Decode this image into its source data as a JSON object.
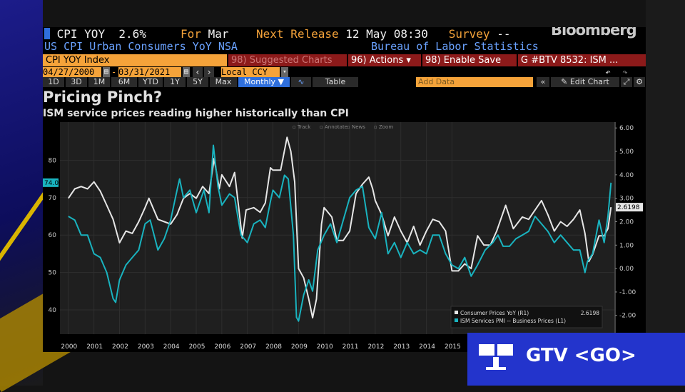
{
  "header": {
    "ticker": "CPI YOY",
    "value": "2.6%",
    "for_label": "For",
    "for_value": "Mar",
    "next_release_label": "Next Release",
    "next_release_value": "12 May 08:30",
    "survey_label": "Survey",
    "survey_value": "--",
    "description": "US CPI Urban Consumers YoY NSA",
    "source": "Bureau of Labor Statistics",
    "brand": "Bloomberg"
  },
  "toolbar": {
    "security": "CPI YOY Index",
    "suggested": "98) Suggested Charts",
    "actions": "96) Actions ▾",
    "enable_save": "98) Enable Save",
    "chart_id": "G #BTV 8532: ISM ...",
    "start_date": "04/27/2000",
    "end_date": "03/31/2021",
    "currency": "Local CCY",
    "periods": [
      "1D",
      "3D",
      "1M",
      "6M",
      "YTD",
      "1Y",
      "5Y",
      "Max"
    ],
    "frequency": "Monthly ▼",
    "table": "Table",
    "add_data": "Add Data",
    "edit_chart": "✎ Edit Chart",
    "colors": {
      "orange": "#f5a33a",
      "red": "#8c1a1a",
      "blue": "#2f6fdc"
    }
  },
  "chart_tools": [
    "Track",
    "Annotate",
    "News",
    "Zoom"
  ],
  "gtv": {
    "label": "GTV <GO>"
  },
  "chart_data": {
    "type": "line",
    "title": "Pricing Pinch?",
    "subtitle": "ISM service prices reading higher historically than CPI",
    "x_tick_labels": [
      "2000",
      "2001",
      "2002",
      "2003",
      "2004",
      "2005",
      "2006",
      "2007",
      "2008",
      "2009",
      "2010",
      "2011",
      "2012",
      "2013",
      "2014",
      "2015"
    ],
    "x_range": [
      1999.67,
      2021.35
    ],
    "left_axis": {
      "ticks": [
        40,
        50,
        60,
        70,
        80
      ],
      "range": [
        33.5,
        90.2
      ]
    },
    "right_axis": {
      "ticks": [
        "-2.00",
        "-1.00",
        "0.00",
        "1.00",
        "2.00",
        "3.00",
        "4.00",
        "5.00",
        "6.00"
      ],
      "range": [
        -2.8,
        6.25
      ]
    },
    "current_labels": {
      "left": "74.0",
      "right": "2.6198"
    },
    "legend_position": "bottom-right",
    "series": [
      {
        "name": "Consumer Prices YoY (R1)",
        "last": "2.6198",
        "axis": "right",
        "color": "#e6e6e6",
        "points": [
          [
            2000.0,
            3.0
          ],
          [
            2000.25,
            3.4
          ],
          [
            2000.5,
            3.5
          ],
          [
            2000.75,
            3.4
          ],
          [
            2001.0,
            3.7
          ],
          [
            2001.25,
            3.3
          ],
          [
            2001.5,
            2.7
          ],
          [
            2001.75,
            2.1
          ],
          [
            2002.0,
            1.1
          ],
          [
            2002.25,
            1.6
          ],
          [
            2002.5,
            1.5
          ],
          [
            2002.75,
            2.0
          ],
          [
            2003.0,
            2.6
          ],
          [
            2003.15,
            3.0
          ],
          [
            2003.5,
            2.1
          ],
          [
            2003.75,
            2.0
          ],
          [
            2004.0,
            1.9
          ],
          [
            2004.25,
            2.3
          ],
          [
            2004.5,
            3.0
          ],
          [
            2004.75,
            3.2
          ],
          [
            2005.0,
            3.0
          ],
          [
            2005.25,
            3.5
          ],
          [
            2005.5,
            3.2
          ],
          [
            2005.7,
            4.7
          ],
          [
            2005.9,
            3.4
          ],
          [
            2006.0,
            4.0
          ],
          [
            2006.3,
            3.5
          ],
          [
            2006.5,
            4.1
          ],
          [
            2006.8,
            1.3
          ],
          [
            2006.95,
            2.5
          ],
          [
            2007.25,
            2.6
          ],
          [
            2007.5,
            2.4
          ],
          [
            2007.7,
            2.8
          ],
          [
            2007.9,
            4.3
          ],
          [
            2008.0,
            4.2
          ],
          [
            2008.3,
            4.2
          ],
          [
            2008.55,
            5.6
          ],
          [
            2008.7,
            5.0
          ],
          [
            2008.85,
            3.7
          ],
          [
            2009.0,
            0.0
          ],
          [
            2009.2,
            -0.4
          ],
          [
            2009.4,
            -1.3
          ],
          [
            2009.55,
            -2.1
          ],
          [
            2009.7,
            -1.3
          ],
          [
            2009.9,
            1.9
          ],
          [
            2010.0,
            2.6
          ],
          [
            2010.3,
            2.2
          ],
          [
            2010.5,
            1.2
          ],
          [
            2010.75,
            1.2
          ],
          [
            2011.0,
            1.6
          ],
          [
            2011.25,
            3.2
          ],
          [
            2011.5,
            3.6
          ],
          [
            2011.75,
            3.9
          ],
          [
            2011.9,
            3.4
          ],
          [
            2012.0,
            2.9
          ],
          [
            2012.25,
            2.3
          ],
          [
            2012.5,
            1.4
          ],
          [
            2012.75,
            2.2
          ],
          [
            2013.0,
            1.6
          ],
          [
            2013.25,
            1.1
          ],
          [
            2013.5,
            1.8
          ],
          [
            2013.75,
            1.0
          ],
          [
            2014.0,
            1.6
          ],
          [
            2014.25,
            2.1
          ],
          [
            2014.5,
            2.0
          ],
          [
            2014.75,
            1.6
          ],
          [
            2015.0,
            -0.1
          ],
          [
            2015.25,
            -0.1
          ],
          [
            2015.5,
            0.2
          ],
          [
            2015.75,
            0.0
          ],
          [
            2016.0,
            1.4
          ],
          [
            2016.25,
            1.0
          ],
          [
            2016.5,
            1.0
          ],
          [
            2016.75,
            1.6
          ],
          [
            2017.1,
            2.7
          ],
          [
            2017.4,
            1.7
          ],
          [
            2017.75,
            2.2
          ],
          [
            2018.0,
            2.1
          ],
          [
            2018.25,
            2.5
          ],
          [
            2018.5,
            2.9
          ],
          [
            2018.75,
            2.3
          ],
          [
            2019.0,
            1.6
          ],
          [
            2019.25,
            2.0
          ],
          [
            2019.5,
            1.8
          ],
          [
            2019.75,
            2.1
          ],
          [
            2020.0,
            2.5
          ],
          [
            2020.2,
            1.5
          ],
          [
            2020.35,
            0.3
          ],
          [
            2020.5,
            0.6
          ],
          [
            2020.75,
            1.4
          ],
          [
            2020.95,
            1.4
          ],
          [
            2021.1,
            1.7
          ],
          [
            2021.22,
            2.62
          ]
        ]
      },
      {
        "name": "ISM Services PMI -- Business Prices (L1)",
        "last": "74.0",
        "axis": "left",
        "color": "#19b3bf",
        "points": [
          [
            2000.0,
            65
          ],
          [
            2000.25,
            64
          ],
          [
            2000.5,
            60
          ],
          [
            2000.75,
            60
          ],
          [
            2001.0,
            55
          ],
          [
            2001.25,
            54
          ],
          [
            2001.5,
            50
          ],
          [
            2001.75,
            43
          ],
          [
            2001.85,
            42
          ],
          [
            2002.0,
            48
          ],
          [
            2002.25,
            52
          ],
          [
            2002.5,
            54
          ],
          [
            2002.75,
            56
          ],
          [
            2003.0,
            63
          ],
          [
            2003.2,
            64
          ],
          [
            2003.5,
            56
          ],
          [
            2003.75,
            59
          ],
          [
            2004.0,
            64
          ],
          [
            2004.25,
            72
          ],
          [
            2004.35,
            75
          ],
          [
            2004.5,
            70
          ],
          [
            2004.75,
            72
          ],
          [
            2005.0,
            66
          ],
          [
            2005.3,
            72
          ],
          [
            2005.5,
            66
          ],
          [
            2005.67,
            84
          ],
          [
            2005.85,
            73
          ],
          [
            2006.0,
            68
          ],
          [
            2006.3,
            71
          ],
          [
            2006.5,
            70
          ],
          [
            2006.75,
            60
          ],
          [
            2007.0,
            58
          ],
          [
            2007.25,
            63
          ],
          [
            2007.5,
            64
          ],
          [
            2007.7,
            62
          ],
          [
            2007.9,
            69
          ],
          [
            2008.0,
            72
          ],
          [
            2008.25,
            70
          ],
          [
            2008.45,
            76
          ],
          [
            2008.6,
            75
          ],
          [
            2008.8,
            60
          ],
          [
            2008.92,
            38
          ],
          [
            2009.0,
            37
          ],
          [
            2009.2,
            44
          ],
          [
            2009.4,
            48
          ],
          [
            2009.55,
            45
          ],
          [
            2009.75,
            56
          ],
          [
            2010.0,
            60
          ],
          [
            2010.25,
            63
          ],
          [
            2010.5,
            58
          ],
          [
            2010.75,
            64
          ],
          [
            2011.0,
            70
          ],
          [
            2011.25,
            72
          ],
          [
            2011.5,
            73
          ],
          [
            2011.75,
            62
          ],
          [
            2012.0,
            59
          ],
          [
            2012.25,
            66
          ],
          [
            2012.5,
            55
          ],
          [
            2012.75,
            58
          ],
          [
            2013.0,
            54
          ],
          [
            2013.25,
            58
          ],
          [
            2013.5,
            55
          ],
          [
            2013.75,
            56
          ],
          [
            2014.0,
            55
          ],
          [
            2014.25,
            60
          ],
          [
            2014.5,
            60
          ],
          [
            2014.75,
            55
          ],
          [
            2015.0,
            52
          ],
          [
            2015.25,
            51
          ],
          [
            2015.5,
            54
          ],
          [
            2015.75,
            49
          ],
          [
            2016.0,
            52
          ],
          [
            2016.3,
            56
          ],
          [
            2016.6,
            58
          ],
          [
            2016.8,
            60
          ],
          [
            2017.0,
            57
          ],
          [
            2017.25,
            57
          ],
          [
            2017.5,
            59
          ],
          [
            2017.75,
            60
          ],
          [
            2018.0,
            61
          ],
          [
            2018.25,
            65
          ],
          [
            2018.5,
            63
          ],
          [
            2018.75,
            61
          ],
          [
            2019.0,
            58
          ],
          [
            2019.25,
            60
          ],
          [
            2019.5,
            58
          ],
          [
            2019.75,
            56
          ],
          [
            2020.0,
            56
          ],
          [
            2020.2,
            50
          ],
          [
            2020.3,
            53
          ],
          [
            2020.5,
            55
          ],
          [
            2020.75,
            64
          ],
          [
            2020.95,
            58
          ],
          [
            2021.1,
            65
          ],
          [
            2021.18,
            71
          ],
          [
            2021.22,
            74
          ]
        ]
      }
    ]
  }
}
